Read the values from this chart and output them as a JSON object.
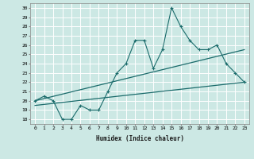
{
  "title": "",
  "xlabel": "Humidex (Indice chaleur)",
  "ylabel": "",
  "bg_color": "#cce8e4",
  "line_color": "#1a6b6b",
  "grid_color": "#ffffff",
  "xlim": [
    -0.5,
    23.5
  ],
  "ylim": [
    17.5,
    30.5
  ],
  "xticks": [
    0,
    1,
    2,
    3,
    4,
    5,
    6,
    7,
    8,
    9,
    10,
    11,
    12,
    13,
    14,
    15,
    16,
    17,
    18,
    19,
    20,
    21,
    22,
    23
  ],
  "yticks": [
    18,
    19,
    20,
    21,
    22,
    23,
    24,
    25,
    26,
    27,
    28,
    29,
    30
  ],
  "data_x": [
    0,
    1,
    2,
    3,
    4,
    5,
    6,
    7,
    8,
    9,
    10,
    11,
    12,
    13,
    14,
    15,
    16,
    17,
    18,
    19,
    20,
    21,
    22,
    23
  ],
  "data_y": [
    20,
    20.5,
    20,
    18,
    18,
    19.5,
    19,
    19,
    21,
    23,
    24,
    26.5,
    26.5,
    23.5,
    25.5,
    30,
    28,
    26.5,
    25.5,
    25.5,
    26,
    24,
    23,
    22
  ],
  "trend1_x": [
    0,
    23
  ],
  "trend1_y": [
    20.0,
    25.5
  ],
  "trend2_x": [
    0,
    23
  ],
  "trend2_y": [
    19.5,
    22.0
  ]
}
